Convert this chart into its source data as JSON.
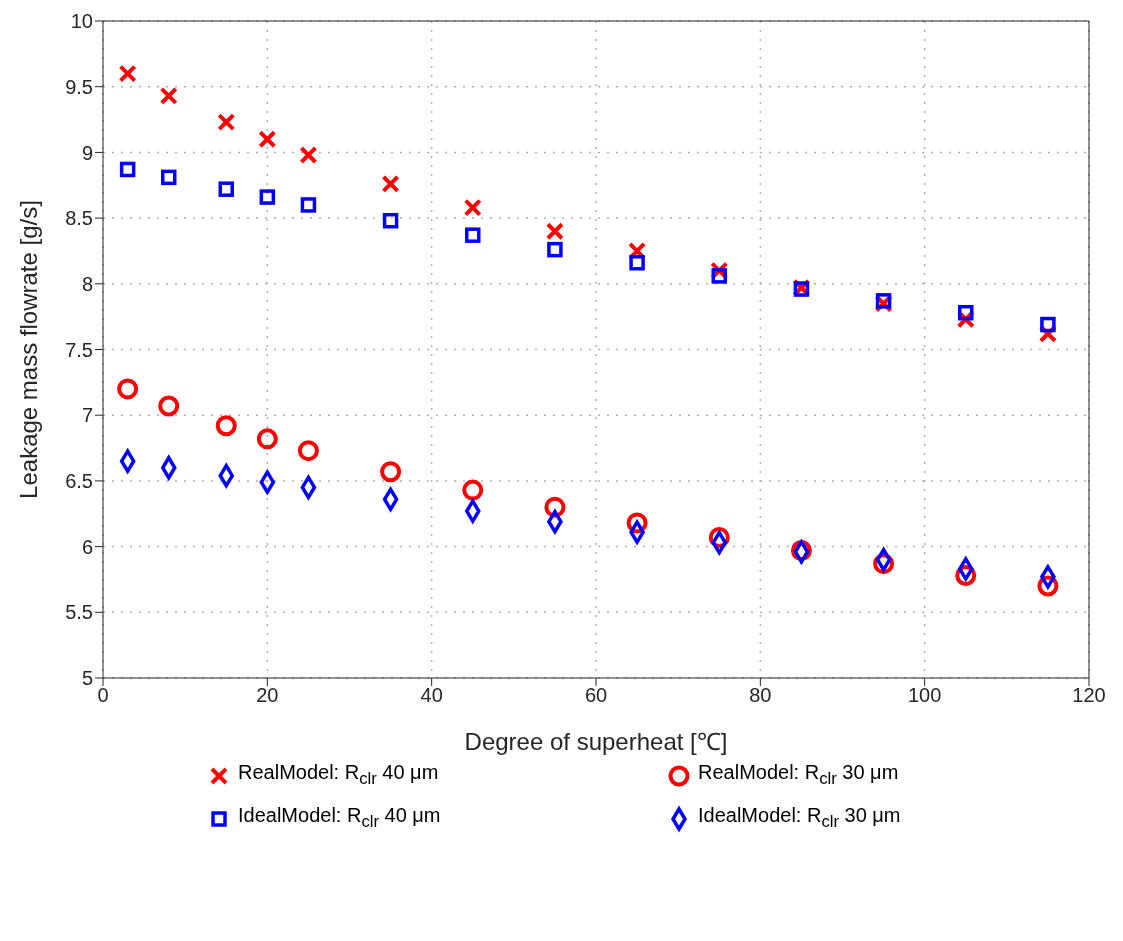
{
  "chart_data": {
    "type": "scatter",
    "xlabel": "Degree of superheat [℃]",
    "ylabel": "Leakage mass flowrate [g/s]",
    "x": [
      3,
      8,
      15,
      20,
      25,
      35,
      45,
      55,
      65,
      75,
      85,
      95,
      105,
      115
    ],
    "series": [
      {
        "name": "RealModel: R$_{clr}$ 40 μm",
        "color": "#ff0000",
        "marker": "cross",
        "values": [
          9.6,
          9.43,
          9.23,
          9.1,
          8.98,
          8.76,
          8.58,
          8.4,
          8.25,
          8.1,
          7.97,
          7.85,
          7.73,
          7.62
        ]
      },
      {
        "name": "IdealModel: R$_{clr}$ 40 μm",
        "color": "#0000ff",
        "marker": "square",
        "values": [
          8.87,
          8.81,
          8.72,
          8.66,
          8.6,
          8.48,
          8.37,
          8.26,
          8.16,
          8.06,
          7.96,
          7.87,
          7.78,
          7.69
        ]
      },
      {
        "name": "RealModel: R$_{clr}$ 30 μm",
        "color": "#ff0000",
        "marker": "circle",
        "values": [
          7.2,
          7.07,
          6.92,
          6.82,
          6.73,
          6.57,
          6.43,
          6.3,
          6.18,
          6.07,
          5.97,
          5.87,
          5.78,
          5.7
        ]
      },
      {
        "name": "IdealModel: R$_{clr}$ 30 μm",
        "color": "#0000ff",
        "marker": "diamond",
        "values": [
          6.65,
          6.6,
          6.54,
          6.49,
          6.45,
          6.36,
          6.27,
          6.19,
          6.11,
          6.03,
          5.96,
          5.9,
          5.83,
          5.77
        ]
      }
    ],
    "xlim": [
      0,
      120
    ],
    "xticks": [
      0,
      20,
      40,
      60,
      80,
      100,
      120
    ],
    "ylim": [
      5,
      10
    ],
    "yticks": [
      5,
      5.5,
      6,
      6.5,
      7,
      7.5,
      8,
      8.5,
      9,
      9.5,
      10
    ],
    "grid": true,
    "legend": "bottom"
  }
}
